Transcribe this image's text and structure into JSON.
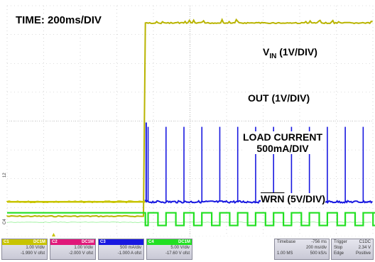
{
  "chart_data": {
    "type": "line",
    "title": "",
    "xlabel": "",
    "ylabel": "",
    "x_divisions": 10,
    "y_divisions": 8,
    "x_range_ms": [
      -756,
      1244
    ],
    "grid": true,
    "colors": {
      "background": "#ffffff",
      "grid": "#bbbbbb",
      "vin": "#b9b400",
      "out": "#c8c400",
      "load_current": "#1818e0",
      "wrn": "#22e022",
      "ch2": "#e0187a"
    },
    "annotations": {
      "time": "TIME: 200ms/DIV",
      "vin_main": "V",
      "vin_sub": "IN",
      "vin_tail": " (1V/DIV)",
      "out": "OUT (1V/DIV)",
      "load_line1": "LOAD CURRENT",
      "load_line2": "500mA/DIV",
      "wrn_name": "WRN",
      "wrn_tail": " (5V/DIV)"
    },
    "series": [
      {
        "name": "VIN",
        "channel": "C1",
        "step_time_ms": 0,
        "low_div": 0.7,
        "high_div": 7.4
      },
      {
        "name": "OUT",
        "channel": "C1",
        "low_div": 1.2,
        "high_div": 1.2
      },
      {
        "name": "LOAD CURRENT",
        "channel": "C3",
        "baseline_div": 1.2,
        "pulse_peak_div": [
          3.8,
          3.8,
          3.8,
          3.8,
          3.8,
          3.8,
          3.8,
          3.8,
          3.8,
          3.8,
          3.8,
          3.8,
          3.8,
          3.8
        ],
        "pulse_period_ms": 98,
        "first_pulse_ms": 15
      },
      {
        "name": "WRN",
        "channel": "C4",
        "high_div": 0.82,
        "low_div": 0.38,
        "pulse_period_ms": 98,
        "first_pulse_ms": 15
      }
    ]
  },
  "channels": [
    {
      "id": "C1",
      "coupling": "DC1M",
      "scale": "1.00 V/div",
      "offset": "-1.990 V ofst",
      "color": "#c8c400"
    },
    {
      "id": "C2",
      "coupling": "DC1M",
      "scale": "1.00 V/div",
      "offset": "-2.000 V ofst",
      "color": "#e0187a"
    },
    {
      "id": "C3",
      "coupling": "",
      "scale": "500 mA/div",
      "offset": "-1.000 A ofst",
      "color": "#1818e0"
    },
    {
      "id": "C4",
      "coupling": "DC1M",
      "scale": "5.00 V/div",
      "offset": "-17.60 V ofst",
      "color": "#22e022"
    }
  ],
  "timebase": {
    "label": "Timebase",
    "delay": "-756 ms",
    "scale": "200 ms/div",
    "samples": "1.00 MS",
    "rate": "500 kS/s"
  },
  "trigger": {
    "label": "Trigger",
    "source": "C1DC",
    "mode": "Stop",
    "level": "2.34 V",
    "type": "Edge",
    "slope": "Positive"
  },
  "markers": {
    "ch_a": "12",
    "ch_b": "C4"
  }
}
